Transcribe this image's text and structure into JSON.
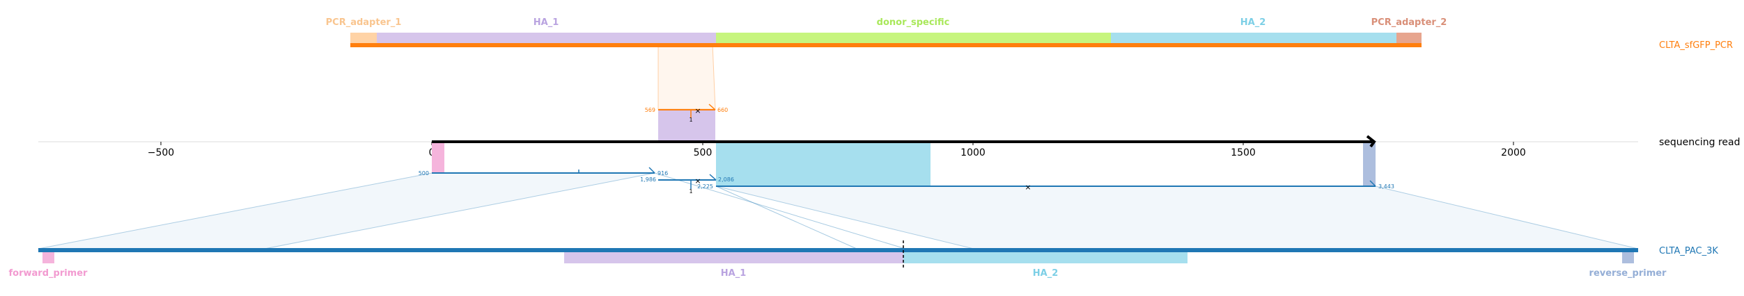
{
  "colors": {
    "orange": "#ff7f0e",
    "blue": "#1f77b4",
    "pcr_adapter_1": "#ffd3a6",
    "ha_1": "#d6c5eb",
    "donor_specific": "#c7f57e",
    "ha_2": "#a6dfee",
    "pcr_adapter_2": "#e7a58e",
    "forward_primer": "#f5b4dc",
    "reverse_primer": "#adbede"
  },
  "top_reference": {
    "name": "CLTA_sfGFP_PCR",
    "features": [
      {
        "label": "PCR_adapter_1",
        "color": "#ffd3a6",
        "label_color": "#f9c58f"
      },
      {
        "label": "HA_1",
        "color": "#d6c5eb",
        "label_color": "#b9a3e0"
      },
      {
        "label": "donor_specific",
        "color": "#c7f57e",
        "label_color": "#a9e85a"
      },
      {
        "label": "HA_2",
        "color": "#a6dfee",
        "label_color": "#7ccfe6"
      },
      {
        "label": "PCR_adapter_2",
        "color": "#e7a58e",
        "label_color": "#d98f78"
      }
    ]
  },
  "read": {
    "name": "sequencing read",
    "axis_ticks": [
      "−500",
      "0",
      "500",
      "1000",
      "1500",
      "2000"
    ]
  },
  "bottom_reference": {
    "name": "CLTA_PAC_3K",
    "features": [
      {
        "label": "forward_primer",
        "color": "#f5b4dc",
        "label_color": "#f29ad0"
      },
      {
        "label": "HA_1",
        "color": "#d6c5eb",
        "label_color": "#b9a3e0"
      },
      {
        "label": "HA_2",
        "color": "#a6dfee",
        "label_color": "#7ccfe6"
      },
      {
        "label": "reverse_primer",
        "color": "#adbede",
        "label_color": "#94aed6"
      }
    ]
  },
  "alignments": {
    "top": {
      "read_start": "569",
      "read_end": "660",
      "mismatch": "1"
    },
    "bottom_left": {
      "read_start": "500",
      "read_end": "916",
      "ref_start": "1,986"
    },
    "bottom_right": {
      "read_start": "2,086",
      "ref_start": "2,225",
      "ref_end": "3,443",
      "mismatch": "1"
    }
  }
}
